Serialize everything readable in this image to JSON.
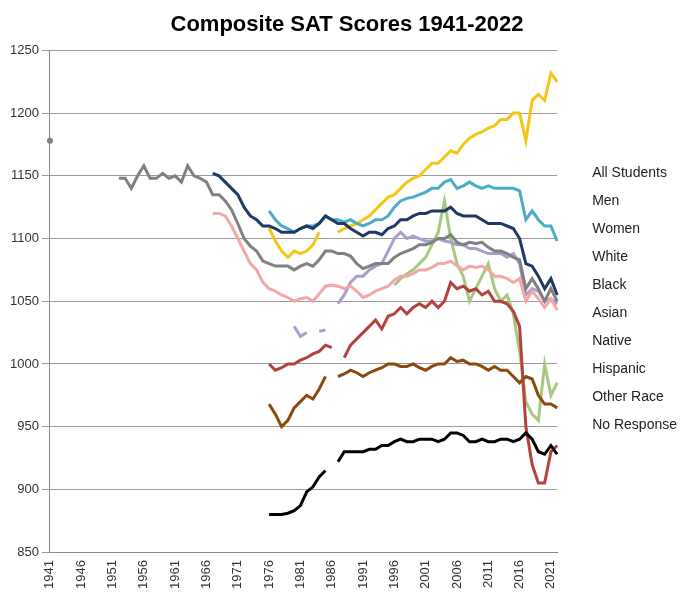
{
  "chart_data": {
    "type": "line",
    "title": "Composite SAT Scores 1941-2022",
    "x": [
      1941,
      1942,
      1943,
      1944,
      1945,
      1946,
      1947,
      1948,
      1949,
      1950,
      1951,
      1952,
      1953,
      1954,
      1955,
      1956,
      1957,
      1958,
      1959,
      1960,
      1961,
      1962,
      1963,
      1964,
      1965,
      1966,
      1967,
      1968,
      1969,
      1970,
      1971,
      1972,
      1973,
      1974,
      1975,
      1976,
      1977,
      1978,
      1979,
      1980,
      1981,
      1982,
      1983,
      1984,
      1985,
      1986,
      1987,
      1988,
      1989,
      1990,
      1991,
      1992,
      1993,
      1994,
      1995,
      1996,
      1997,
      1998,
      1999,
      2000,
      2001,
      2002,
      2003,
      2004,
      2005,
      2006,
      2007,
      2008,
      2009,
      2010,
      2011,
      2012,
      2013,
      2014,
      2015,
      2016,
      2017,
      2018,
      2019,
      2020,
      2021,
      2022
    ],
    "xlim": [
      1941,
      2022
    ],
    "xticks": [
      1941,
      1946,
      1951,
      1956,
      1961,
      1966,
      1971,
      1976,
      1981,
      1986,
      1991,
      1996,
      2001,
      2006,
      2011,
      2016,
      2021
    ],
    "ylim": [
      850,
      1250
    ],
    "yticks": [
      850,
      900,
      950,
      1000,
      1050,
      1100,
      1150,
      1200,
      1250
    ],
    "grid": true,
    "legend": "right",
    "series": [
      {
        "name": "All Students",
        "color": "#808080",
        "values": [
          1178,
          null,
          null,
          null,
          null,
          null,
          null,
          null,
          null,
          null,
          null,
          1148,
          1148,
          1140,
          1150,
          1158,
          1148,
          1148,
          1152,
          1148,
          1150,
          1145,
          1158,
          1150,
          1148,
          1145,
          1135,
          1135,
          1130,
          1123,
          1112,
          1100,
          1094,
          1090,
          1082,
          1080,
          1078,
          1078,
          1078,
          1075,
          1078,
          1080,
          1078,
          1083,
          1090,
          1090,
          1088,
          1088,
          1086,
          1080,
          1076,
          1078,
          1080,
          1080,
          1080,
          1085,
          1088,
          1090,
          1092,
          1095,
          1095,
          1097,
          1100,
          1100,
          1103,
          1097,
          1095,
          1097,
          1096,
          1097,
          1093,
          1090,
          1090,
          1088,
          1085,
          1083,
          1060,
          1068,
          1060,
          1050,
          1060,
          1050
        ]
      },
      {
        "name": "Men",
        "color": "#1f3864",
        "values": [
          null,
          null,
          null,
          null,
          null,
          null,
          null,
          null,
          null,
          null,
          null,
          null,
          null,
          null,
          null,
          null,
          null,
          null,
          null,
          null,
          null,
          null,
          null,
          null,
          null,
          null,
          1152,
          1150,
          1145,
          1140,
          1135,
          1125,
          1118,
          1115,
          1110,
          1110,
          1108,
          1105,
          1105,
          1105,
          1108,
          1110,
          1108,
          1112,
          1118,
          1115,
          1112,
          1112,
          1108,
          1105,
          1102,
          1105,
          1105,
          1103,
          1108,
          1110,
          1115,
          1115,
          1118,
          1120,
          1120,
          1122,
          1122,
          1122,
          1125,
          1120,
          1118,
          1118,
          1118,
          1115,
          1112,
          1112,
          1112,
          1110,
          1108,
          1100,
          1080,
          1078,
          1070,
          1060,
          1068,
          1055
        ]
      },
      {
        "name": "Women",
        "color": "#f4a7a7",
        "values": [
          null,
          null,
          null,
          null,
          null,
          null,
          null,
          null,
          null,
          null,
          null,
          null,
          null,
          null,
          null,
          null,
          null,
          null,
          null,
          null,
          null,
          null,
          null,
          null,
          null,
          null,
          1120,
          1120,
          1118,
          1110,
          1100,
          1090,
          1080,
          1075,
          1065,
          1060,
          1058,
          1055,
          1053,
          1050,
          1052,
          1053,
          1050,
          1056,
          1062,
          1063,
          1062,
          1060,
          1062,
          1058,
          1053,
          1055,
          1058,
          1060,
          1062,
          1067,
          1070,
          1070,
          1072,
          1075,
          1075,
          1077,
          1080,
          1080,
          1082,
          1078,
          1075,
          1078,
          1077,
          1078,
          1075,
          1070,
          1070,
          1068,
          1065,
          1068,
          1050,
          1058,
          1052,
          1045,
          1052,
          1043
        ]
      },
      {
        "name": "White",
        "color": "#4bacc6",
        "values": [
          null,
          null,
          null,
          null,
          null,
          null,
          null,
          null,
          null,
          null,
          null,
          null,
          null,
          null,
          null,
          null,
          null,
          null,
          null,
          null,
          null,
          null,
          null,
          null,
          null,
          null,
          null,
          null,
          null,
          null,
          null,
          null,
          null,
          null,
          null,
          1122,
          1115,
          1110,
          1108,
          1105,
          1108,
          1110,
          1110,
          1112,
          1118,
          1115,
          1115,
          1113,
          1115,
          1112,
          1110,
          1112,
          1115,
          1115,
          1118,
          1125,
          1130,
          1132,
          1133,
          1135,
          1137,
          1140,
          1140,
          1145,
          1147,
          1140,
          1142,
          1145,
          1142,
          1140,
          1142,
          1140,
          1140,
          1140,
          1140,
          1138,
          1115,
          1122,
          1115,
          1110,
          1110,
          1098
        ]
      },
      {
        "name": "Black",
        "color": "#000000",
        "values": [
          null,
          null,
          null,
          null,
          null,
          null,
          null,
          null,
          null,
          null,
          null,
          null,
          null,
          null,
          null,
          null,
          null,
          null,
          null,
          null,
          null,
          null,
          null,
          null,
          null,
          null,
          null,
          null,
          null,
          null,
          null,
          null,
          null,
          null,
          null,
          880,
          880,
          880,
          881,
          883,
          887,
          898,
          902,
          910,
          915,
          null,
          922,
          930,
          930,
          930,
          930,
          932,
          932,
          935,
          935,
          938,
          940,
          938,
          938,
          940,
          940,
          940,
          938,
          940,
          945,
          945,
          943,
          938,
          938,
          940,
          938,
          938,
          940,
          940,
          938,
          940,
          945,
          940,
          930,
          928,
          935,
          928
        ]
      },
      {
        "name": "Asian",
        "color": "#f5c518",
        "values": [
          null,
          null,
          null,
          null,
          null,
          null,
          null,
          null,
          null,
          null,
          null,
          null,
          null,
          null,
          null,
          null,
          null,
          null,
          null,
          null,
          null,
          null,
          null,
          null,
          null,
          null,
          null,
          null,
          null,
          null,
          null,
          null,
          null,
          null,
          null,
          1108,
          1098,
          1090,
          1085,
          1090,
          1088,
          1090,
          1095,
          1105,
          null,
          null,
          1105,
          1108,
          1110,
          1112,
          1115,
          1118,
          1123,
          1128,
          1133,
          1135,
          1140,
          1145,
          1148,
          1150,
          1155,
          1160,
          1160,
          1165,
          1170,
          1168,
          1175,
          1180,
          1183,
          1185,
          1188,
          1190,
          1195,
          1195,
          1200,
          1200,
          1178,
          1210,
          1215,
          1210,
          1232,
          1225
        ]
      },
      {
        "name": "Native",
        "color": "#b5413f",
        "values": [
          null,
          null,
          null,
          null,
          null,
          null,
          null,
          null,
          null,
          null,
          null,
          null,
          null,
          null,
          null,
          null,
          null,
          null,
          null,
          null,
          null,
          null,
          null,
          null,
          null,
          null,
          null,
          null,
          null,
          null,
          null,
          null,
          null,
          null,
          null,
          1000,
          995,
          997,
          1000,
          1000,
          1003,
          1005,
          1008,
          1010,
          1015,
          1013,
          null,
          1005,
          1015,
          1020,
          1025,
          1030,
          1035,
          1028,
          1038,
          1040,
          1045,
          1040,
          1045,
          1048,
          1045,
          1050,
          1045,
          1050,
          1065,
          1060,
          1062,
          1058,
          1060,
          1055,
          1058,
          1050,
          1050,
          1048,
          1042,
          1030,
          950,
          920,
          905,
          905,
          930,
          935
        ]
      },
      {
        "name": "Hispanic",
        "color": "#8b4a0c",
        "values": [
          null,
          null,
          null,
          null,
          null,
          null,
          null,
          null,
          null,
          null,
          null,
          null,
          null,
          null,
          null,
          null,
          null,
          null,
          null,
          null,
          null,
          null,
          null,
          null,
          null,
          null,
          null,
          null,
          null,
          null,
          null,
          null,
          null,
          null,
          null,
          968,
          960,
          950,
          955,
          965,
          970,
          975,
          972,
          980,
          990,
          null,
          990,
          992,
          995,
          993,
          990,
          993,
          995,
          997,
          1000,
          1000,
          998,
          998,
          1000,
          997,
          995,
          998,
          1000,
          1000,
          1005,
          1002,
          1003,
          1000,
          1000,
          998,
          995,
          998,
          995,
          995,
          990,
          985,
          990,
          988,
          975,
          968,
          968,
          965
        ]
      },
      {
        "name": "Other Race",
        "color": "#a99dcb",
        "values": [
          null,
          null,
          null,
          null,
          null,
          null,
          null,
          null,
          null,
          null,
          null,
          null,
          null,
          null,
          null,
          null,
          null,
          null,
          null,
          null,
          null,
          null,
          null,
          null,
          null,
          null,
          null,
          null,
          null,
          null,
          null,
          null,
          null,
          null,
          null,
          null,
          null,
          null,
          null,
          1030,
          1022,
          1025,
          null,
          1026,
          1027,
          null,
          1048,
          1055,
          1065,
          1070,
          1070,
          1075,
          1078,
          1080,
          1090,
          1100,
          1105,
          1100,
          1102,
          1100,
          1098,
          1098,
          1100,
          1098,
          1097,
          1095,
          1095,
          1092,
          1092,
          1090,
          1088,
          1088,
          1088,
          1085,
          1088,
          1080,
          1055,
          1060,
          1058,
          1050,
          1052,
          1048
        ]
      },
      {
        "name": "No Response",
        "color": "#a6c97f",
        "values": [
          null,
          null,
          null,
          null,
          null,
          null,
          null,
          null,
          null,
          null,
          null,
          null,
          null,
          null,
          null,
          null,
          null,
          null,
          null,
          null,
          null,
          null,
          null,
          null,
          null,
          null,
          null,
          null,
          null,
          null,
          null,
          null,
          null,
          null,
          null,
          null,
          null,
          null,
          null,
          null,
          null,
          null,
          null,
          null,
          null,
          null,
          null,
          null,
          null,
          null,
          null,
          null,
          null,
          null,
          null,
          1063,
          1068,
          1072,
          1075,
          1080,
          1085,
          1095,
          1105,
          1130,
          1100,
          1080,
          1070,
          1050,
          1060,
          1070,
          1080,
          1060,
          1050,
          1055,
          1040,
          1010,
          970,
          960,
          955,
          1000,
          975,
          985
        ]
      }
    ]
  }
}
